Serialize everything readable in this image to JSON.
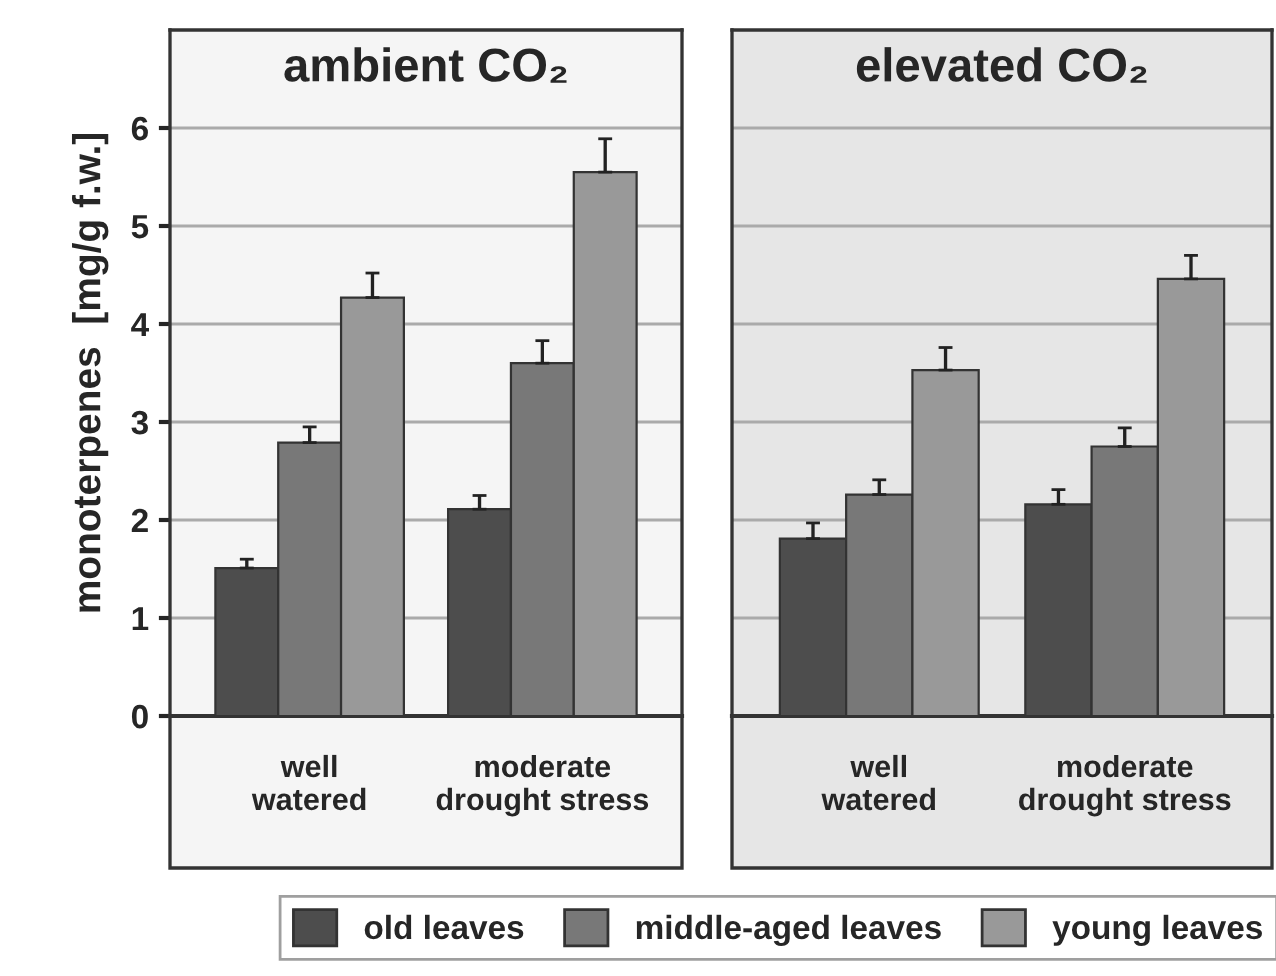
{
  "chart_data": [
    {
      "type": "bar",
      "title": "ambient CO₂",
      "ylabel": "monoterpenes  [mg/g f.w.]",
      "categories": [
        "well\nwatered",
        "moderate\ndrought stress"
      ],
      "ylim": [
        0,
        7
      ],
      "yticks": [
        0,
        1,
        2,
        3,
        4,
        5,
        6
      ],
      "grid": "y",
      "legend": "bottom",
      "series": [
        {
          "name": "old leaves",
          "color": "#4d4d4d",
          "values": [
            1.51,
            2.11
          ],
          "errors": [
            [
              1.51,
              1.6
            ],
            [
              2.11,
              2.25
            ]
          ]
        },
        {
          "name": "middle-aged leaves",
          "color": "#787878",
          "values": [
            2.79,
            3.6
          ],
          "errors": [
            [
              2.79,
              2.95
            ],
            [
              3.6,
              3.83
            ]
          ]
        },
        {
          "name": "young leaves",
          "color": "#999999",
          "values": [
            4.27,
            5.55
          ],
          "errors": [
            [
              4.27,
              4.52
            ],
            [
              5.55,
              5.89
            ]
          ]
        }
      ]
    },
    {
      "type": "bar",
      "title": "elevated CO₂",
      "categories": [
        "well\nwatered",
        "moderate\ndrought stress"
      ],
      "ylim": [
        0,
        7
      ],
      "yticks": [
        0,
        1,
        2,
        3,
        4,
        5,
        6
      ],
      "grid": "y",
      "tick_labels": "x",
      "series": [
        {
          "color": "#4d4d4d",
          "values": [
            1.81,
            2.16
          ],
          "errors": [
            [
              1.81,
              1.97
            ],
            [
              2.16,
              2.31
            ]
          ]
        },
        {
          "color": "#787878",
          "values": [
            2.26,
            2.75
          ],
          "errors": [
            [
              2.26,
              2.41
            ],
            [
              2.75,
              2.94
            ]
          ]
        },
        {
          "color": "#999999",
          "values": [
            3.53,
            4.46
          ],
          "errors": [
            [
              3.53,
              3.76
            ],
            [
              4.46,
              4.7
            ]
          ]
        }
      ]
    }
  ]
}
